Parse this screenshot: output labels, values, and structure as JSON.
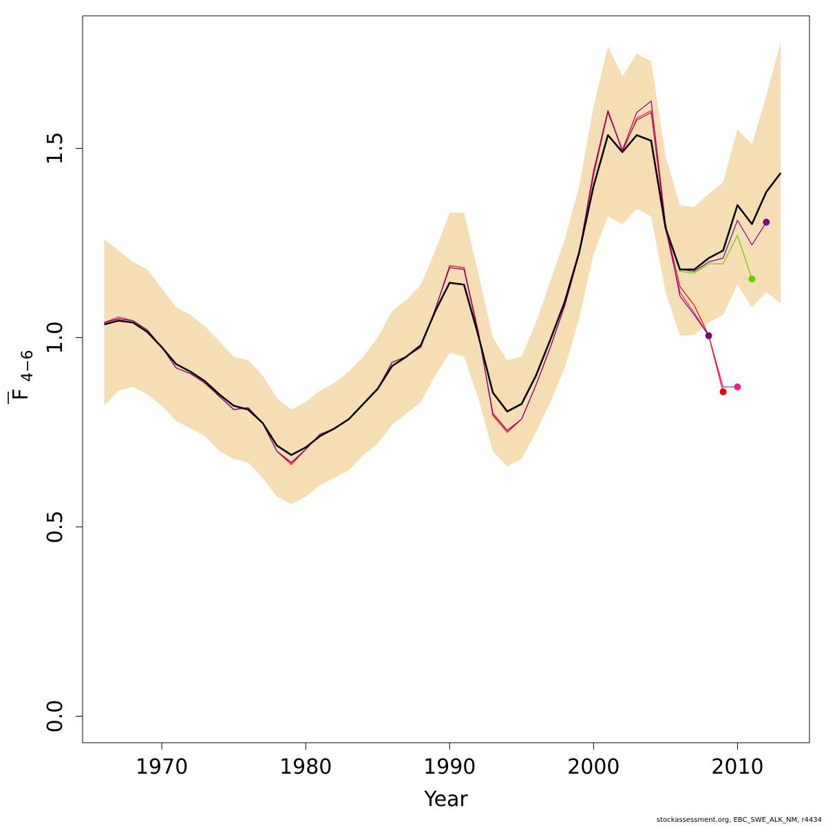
{
  "chart_data": {
    "type": "line",
    "xlabel": "Year",
    "ylabel_main": "F",
    "ylabel_sub": "4−6",
    "xlim": [
      1964.5,
      2015
    ],
    "ylim": [
      -0.07,
      1.85
    ],
    "x_ticks": [
      1970,
      1980,
      1990,
      2000,
      2010
    ],
    "x_tick_labels": [
      "1970",
      "1980",
      "1990",
      "2000",
      "2010"
    ],
    "y_ticks": [
      0,
      0.5,
      1,
      1.5
    ],
    "y_tick_labels": [
      "0.0",
      "0.5",
      "1.0",
      "1.5"
    ],
    "grid": false,
    "colors": {
      "band": "#f5deb3",
      "main": "#000000",
      "r2008": "#7a007a",
      "r2009": "#ee0000",
      "r2010": "#ff1493",
      "r2011": "#66cc00",
      "r2012": "#7b008b"
    },
    "years": [
      1966,
      1967,
      1968,
      1969,
      1970,
      1971,
      1972,
      1973,
      1974,
      1975,
      1976,
      1977,
      1978,
      1979,
      1980,
      1981,
      1982,
      1983,
      1984,
      1985,
      1986,
      1987,
      1988,
      1989,
      1990,
      1991,
      1992,
      1993,
      1994,
      1995,
      1996,
      1997,
      1998,
      1999,
      2000,
      2001,
      2002,
      2003,
      2004,
      2005,
      2006,
      2007,
      2008,
      2009,
      2010,
      2011,
      2012,
      2013
    ],
    "confidence_band": {
      "lower": [
        0.82,
        0.86,
        0.87,
        0.85,
        0.82,
        0.78,
        0.76,
        0.74,
        0.7,
        0.68,
        0.67,
        0.63,
        0.58,
        0.56,
        0.58,
        0.61,
        0.63,
        0.65,
        0.69,
        0.72,
        0.77,
        0.8,
        0.83,
        0.9,
        0.96,
        0.95,
        0.84,
        0.7,
        0.66,
        0.68,
        0.75,
        0.83,
        0.92,
        1.05,
        1.22,
        1.32,
        1.3,
        1.34,
        1.32,
        1.12,
        1.005,
        1.007,
        1.04,
        1.06,
        1.14,
        1.08,
        1.12,
        1.09
      ],
      "upper": [
        1.26,
        1.23,
        1.2,
        1.18,
        1.13,
        1.08,
        1.06,
        1.03,
        0.99,
        0.95,
        0.94,
        0.9,
        0.84,
        0.81,
        0.83,
        0.86,
        0.88,
        0.91,
        0.95,
        1.0,
        1.07,
        1.1,
        1.14,
        1.23,
        1.33,
        1.33,
        1.17,
        1.0,
        0.94,
        0.95,
        1.04,
        1.15,
        1.26,
        1.4,
        1.61,
        1.77,
        1.69,
        1.75,
        1.73,
        1.48,
        1.35,
        1.345,
        1.38,
        1.41,
        1.55,
        1.51,
        1.64,
        1.78
      ]
    },
    "series": [
      {
        "color_key": "main",
        "points": [
          [
            1966,
            1.035
          ],
          [
            1967,
            1.045
          ],
          [
            1968,
            1.04
          ],
          [
            1969,
            1.015
          ],
          [
            1970,
            0.975
          ],
          [
            1971,
            0.93
          ],
          [
            1972,
            0.91
          ],
          [
            1973,
            0.885
          ],
          [
            1974,
            0.85
          ],
          [
            1975,
            0.82
          ],
          [
            1976,
            0.81
          ],
          [
            1977,
            0.775
          ],
          [
            1978,
            0.715
          ],
          [
            1979,
            0.69
          ],
          [
            1980,
            0.71
          ],
          [
            1981,
            0.74
          ],
          [
            1982,
            0.76
          ],
          [
            1983,
            0.785
          ],
          [
            1984,
            0.825
          ],
          [
            1985,
            0.865
          ],
          [
            1986,
            0.925
          ],
          [
            1987,
            0.95
          ],
          [
            1988,
            0.98
          ],
          [
            1989,
            1.07
          ],
          [
            1990,
            1.145
          ],
          [
            1991,
            1.14
          ],
          [
            1992,
            1.005
          ],
          [
            1993,
            0.855
          ],
          [
            1994,
            0.805
          ],
          [
            1995,
            0.825
          ],
          [
            1996,
            0.9
          ],
          [
            1997,
            0.995
          ],
          [
            1998,
            1.095
          ],
          [
            1999,
            1.225
          ],
          [
            2000,
            1.4
          ],
          [
            2001,
            1.535
          ],
          [
            2002,
            1.49
          ],
          [
            2003,
            1.535
          ],
          [
            2004,
            1.52
          ],
          [
            2005,
            1.29
          ],
          [
            2006,
            1.18
          ],
          [
            2007,
            1.18
          ],
          [
            2008,
            1.21
          ],
          [
            2009,
            1.23
          ],
          [
            2010,
            1.35
          ],
          [
            2011,
            1.3
          ],
          [
            2012,
            1.385
          ],
          [
            2013,
            1.435
          ]
        ]
      },
      {
        "color_key": "r2012",
        "end_marker": true,
        "points": [
          [
            2005,
            1.29
          ],
          [
            2006,
            1.18
          ],
          [
            2007,
            1.175
          ],
          [
            2008,
            1.2
          ],
          [
            2009,
            1.21
          ],
          [
            2010,
            1.31
          ],
          [
            2011,
            1.245
          ],
          [
            2012,
            1.305
          ]
        ]
      },
      {
        "color_key": "r2011",
        "end_marker": true,
        "points": [
          [
            1966,
            1.035
          ],
          [
            1967,
            1.045
          ],
          [
            1968,
            1.04
          ],
          [
            1969,
            1.015
          ],
          [
            1970,
            0.975
          ],
          [
            1971,
            0.93
          ],
          [
            1972,
            0.91
          ],
          [
            1973,
            0.885
          ],
          [
            1974,
            0.85
          ],
          [
            1975,
            0.82
          ],
          [
            1976,
            0.81
          ],
          [
            1977,
            0.775
          ],
          [
            1978,
            0.715
          ],
          [
            1979,
            0.69
          ],
          [
            1980,
            0.71
          ],
          [
            1981,
            0.74
          ],
          [
            1982,
            0.76
          ],
          [
            1983,
            0.785
          ],
          [
            1984,
            0.825
          ],
          [
            1985,
            0.865
          ],
          [
            1986,
            0.925
          ],
          [
            1987,
            0.95
          ],
          [
            1988,
            0.98
          ],
          [
            1989,
            1.07
          ],
          [
            1990,
            1.145
          ],
          [
            1991,
            1.14
          ],
          [
            1992,
            1.005
          ],
          [
            1993,
            0.855
          ],
          [
            1994,
            0.805
          ],
          [
            1995,
            0.825
          ],
          [
            1996,
            0.9
          ],
          [
            1997,
            0.995
          ],
          [
            1998,
            1.095
          ],
          [
            1999,
            1.225
          ],
          [
            2000,
            1.4
          ],
          [
            2001,
            1.535
          ],
          [
            2002,
            1.49
          ],
          [
            2003,
            1.535
          ],
          [
            2004,
            1.52
          ],
          [
            2005,
            1.29
          ],
          [
            2006,
            1.175
          ],
          [
            2007,
            1.17
          ],
          [
            2008,
            1.195
          ],
          [
            2009,
            1.195
          ],
          [
            2010,
            1.27
          ],
          [
            2011,
            1.155
          ]
        ]
      },
      {
        "color_key": "r2010",
        "end_marker": true,
        "points": [
          [
            1966,
            1.04
          ],
          [
            1967,
            1.055
          ],
          [
            1968,
            1.045
          ],
          [
            1969,
            1.02
          ],
          [
            1970,
            0.975
          ],
          [
            1971,
            0.92
          ],
          [
            1972,
            0.905
          ],
          [
            1973,
            0.88
          ],
          [
            1974,
            0.845
          ],
          [
            1975,
            0.81
          ],
          [
            1976,
            0.815
          ],
          [
            1977,
            0.775
          ],
          [
            1978,
            0.7
          ],
          [
            1979,
            0.67
          ],
          [
            1980,
            0.705
          ],
          [
            1981,
            0.745
          ],
          [
            1982,
            0.76
          ],
          [
            1983,
            0.785
          ],
          [
            1984,
            0.825
          ],
          [
            1985,
            0.865
          ],
          [
            1986,
            0.935
          ],
          [
            1987,
            0.95
          ],
          [
            1988,
            0.975
          ],
          [
            1989,
            1.075
          ],
          [
            1990,
            1.185
          ],
          [
            1991,
            1.18
          ],
          [
            1992,
            1.015
          ],
          [
            1993,
            0.8
          ],
          [
            1994,
            0.755
          ],
          [
            1995,
            0.785
          ],
          [
            1996,
            0.875
          ],
          [
            1997,
            0.975
          ],
          [
            1998,
            1.085
          ],
          [
            1999,
            1.22
          ],
          [
            2000,
            1.43
          ],
          [
            2001,
            1.6
          ],
          [
            2002,
            1.49
          ],
          [
            2003,
            1.58
          ],
          [
            2004,
            1.6
          ],
          [
            2005,
            1.285
          ],
          [
            2006,
            1.12
          ],
          [
            2007,
            1.065
          ],
          [
            2008,
            1.005
          ],
          [
            2009,
            0.87
          ],
          [
            2010,
            0.87
          ]
        ]
      },
      {
        "color_key": "r2009",
        "end_marker": true,
        "points": [
          [
            1966,
            1.04
          ],
          [
            1967,
            1.05
          ],
          [
            1968,
            1.045
          ],
          [
            1969,
            1.02
          ],
          [
            1970,
            0.975
          ],
          [
            1971,
            0.92
          ],
          [
            1972,
            0.905
          ],
          [
            1973,
            0.88
          ],
          [
            1974,
            0.845
          ],
          [
            1975,
            0.81
          ],
          [
            1976,
            0.815
          ],
          [
            1977,
            0.775
          ],
          [
            1978,
            0.7
          ],
          [
            1979,
            0.665
          ],
          [
            1980,
            0.705
          ],
          [
            1981,
            0.745
          ],
          [
            1982,
            0.76
          ],
          [
            1983,
            0.785
          ],
          [
            1984,
            0.825
          ],
          [
            1985,
            0.865
          ],
          [
            1986,
            0.935
          ],
          [
            1987,
            0.95
          ],
          [
            1988,
            0.975
          ],
          [
            1989,
            1.075
          ],
          [
            1990,
            1.19
          ],
          [
            1991,
            1.185
          ],
          [
            1992,
            1.015
          ],
          [
            1993,
            0.795
          ],
          [
            1994,
            0.75
          ],
          [
            1995,
            0.785
          ],
          [
            1996,
            0.875
          ],
          [
            1997,
            0.975
          ],
          [
            1998,
            1.085
          ],
          [
            1999,
            1.22
          ],
          [
            2000,
            1.43
          ],
          [
            2001,
            1.595
          ],
          [
            2002,
            1.495
          ],
          [
            2003,
            1.575
          ],
          [
            2004,
            1.595
          ],
          [
            2005,
            1.295
          ],
          [
            2006,
            1.135
          ],
          [
            2007,
            1.085
          ],
          [
            2008,
            1.005
          ],
          [
            2009,
            0.857
          ]
        ]
      },
      {
        "color_key": "r2008",
        "end_marker": true,
        "points": [
          [
            1966,
            1.04
          ],
          [
            1967,
            1.05
          ],
          [
            1968,
            1.045
          ],
          [
            1969,
            1.02
          ],
          [
            1970,
            0.975
          ],
          [
            1971,
            0.92
          ],
          [
            1972,
            0.905
          ],
          [
            1973,
            0.88
          ],
          [
            1974,
            0.845
          ],
          [
            1975,
            0.81
          ],
          [
            1976,
            0.815
          ],
          [
            1977,
            0.775
          ],
          [
            1978,
            0.7
          ],
          [
            1979,
            0.67
          ],
          [
            1980,
            0.705
          ],
          [
            1981,
            0.745
          ],
          [
            1982,
            0.76
          ],
          [
            1983,
            0.785
          ],
          [
            1984,
            0.825
          ],
          [
            1985,
            0.865
          ],
          [
            1986,
            0.935
          ],
          [
            1987,
            0.95
          ],
          [
            1988,
            0.975
          ],
          [
            1989,
            1.075
          ],
          [
            1990,
            1.185
          ],
          [
            1991,
            1.18
          ],
          [
            1992,
            1.01
          ],
          [
            1993,
            0.8
          ],
          [
            1994,
            0.755
          ],
          [
            1995,
            0.785
          ],
          [
            1996,
            0.875
          ],
          [
            1997,
            0.975
          ],
          [
            1998,
            1.085
          ],
          [
            1999,
            1.225
          ],
          [
            2000,
            1.44
          ],
          [
            2001,
            1.6
          ],
          [
            2002,
            1.495
          ],
          [
            2003,
            1.595
          ],
          [
            2004,
            1.625
          ],
          [
            2005,
            1.3
          ],
          [
            2006,
            1.11
          ],
          [
            2007,
            1.06
          ],
          [
            2008,
            1.005
          ]
        ]
      }
    ]
  },
  "footer_text": "stockassessment.org, EBC_SWE_ALK_NM, r4434"
}
